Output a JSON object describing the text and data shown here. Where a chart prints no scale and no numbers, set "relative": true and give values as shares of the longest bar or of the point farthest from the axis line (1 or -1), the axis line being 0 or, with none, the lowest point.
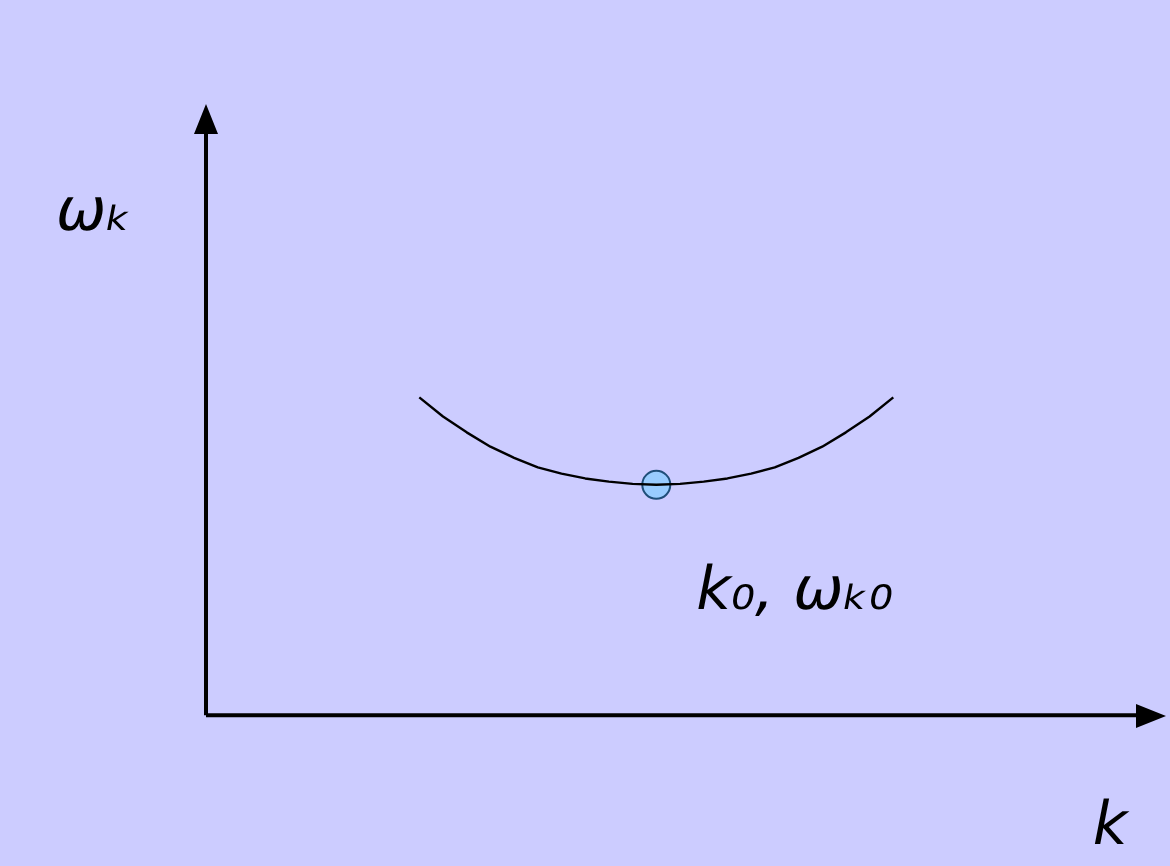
{
  "chart_data": {
    "type": "line",
    "relative": true,
    "xlabel": "k",
    "ylabel": "ωₖ",
    "categories": [
      null,
      null,
      null,
      null,
      null,
      null,
      null,
      null,
      null,
      null,
      null,
      null,
      null,
      null,
      null,
      null,
      null,
      null,
      null,
      null,
      null,
      null,
      null,
      null,
      null,
      null,
      null,
      null,
      null,
      null,
      null,
      null,
      null,
      null,
      null,
      null,
      null,
      null,
      null,
      null,
      null
    ],
    "series": [
      {
        "color": "#000000",
        "marker": "none",
        "values": [
          null,
          null,
          null,
          null,
          null,
          null,
          null,
          null,
          null,
          1.0,
          0.94,
          0.89,
          0.845,
          0.81,
          0.78,
          0.76,
          0.745,
          0.735,
          0.728,
          0.725,
          0.728,
          0.735,
          0.745,
          0.76,
          0.78,
          0.81,
          0.845,
          0.89,
          0.94,
          1.0,
          null,
          null,
          null,
          null,
          null,
          null,
          null,
          null,
          null,
          null,
          null
        ]
      },
      {
        "color": "#99ccff",
        "marker": "circle",
        "values": [
          null,
          null,
          null,
          null,
          null,
          null,
          null,
          null,
          null,
          null,
          null,
          null,
          null,
          null,
          null,
          null,
          null,
          null,
          null,
          0.725,
          null,
          null,
          null,
          null,
          null,
          null,
          null,
          null,
          null,
          null,
          null,
          null,
          null,
          null,
          null,
          null,
          null,
          null,
          null,
          null,
          null
        ]
      }
    ],
    "grid": false,
    "legend": false,
    "annotations": [
      "k₀, ωₖ₀"
    ]
  }
}
